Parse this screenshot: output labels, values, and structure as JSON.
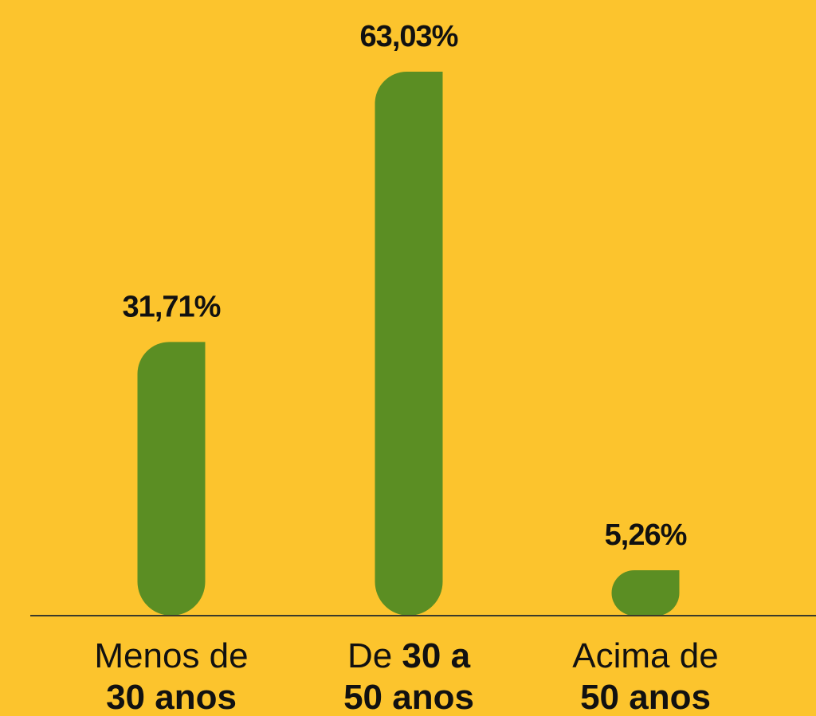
{
  "chart_data": {
    "type": "bar",
    "categories": [
      [
        "Menos de",
        "30 anos"
      ],
      [
        "De",
        "30 a",
        "50 anos"
      ],
      [
        "Acima de",
        "50 anos"
      ]
    ],
    "values": [
      31.71,
      63.03,
      5.26
    ],
    "value_labels": [
      "31,71%",
      "63,03%",
      "5,26%"
    ],
    "color": "#5b8e23"
  }
}
